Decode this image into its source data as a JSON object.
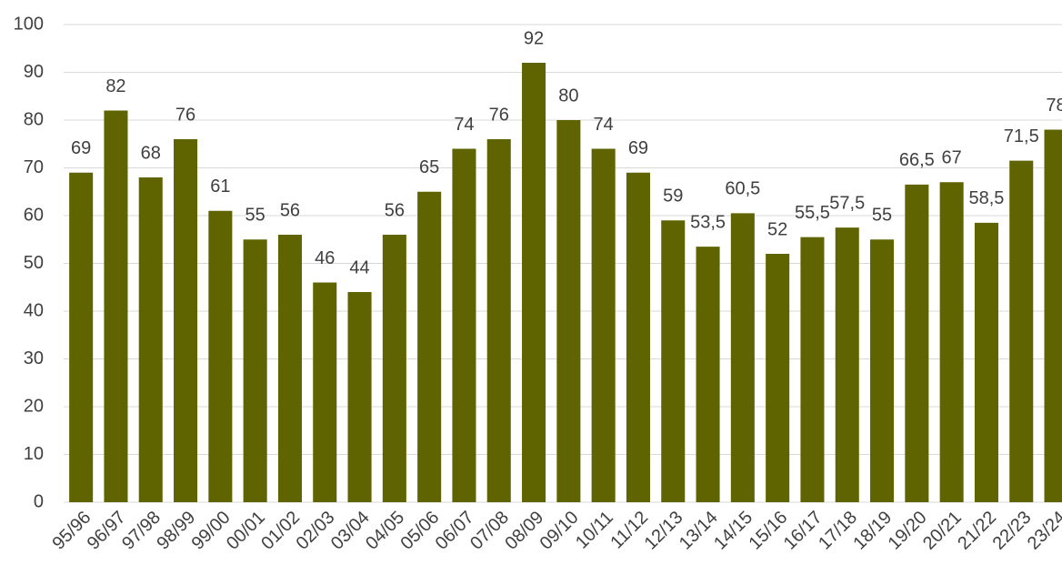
{
  "chart_data": {
    "type": "bar",
    "categories": [
      "95/96",
      "96/97",
      "97/98",
      "98/99",
      "99/00",
      "00/01",
      "01/02",
      "02/03",
      "03/04",
      "04/05",
      "05/06",
      "06/07",
      "07/08",
      "08/09",
      "09/10",
      "10/11",
      "11/12",
      "12/13",
      "13/14",
      "14/15",
      "15/16",
      "16/17",
      "17/18",
      "18/19",
      "19/20",
      "20/21",
      "21/22",
      "22/23",
      "23/24"
    ],
    "values": [
      69,
      82,
      68,
      76,
      61,
      55,
      56,
      46,
      44,
      56,
      65,
      74,
      76,
      92,
      80,
      74,
      69,
      59,
      53.5,
      60.5,
      52,
      55.5,
      57.5,
      55,
      66.5,
      67,
      58.5,
      71.5,
      78
    ],
    "value_labels": [
      "69",
      "82",
      "68",
      "76",
      "61",
      "55",
      "56",
      "46",
      "44",
      "56",
      "65",
      "74",
      "76",
      "92",
      "80",
      "74",
      "69",
      "59",
      "53,5",
      "60,5",
      "52",
      "55,5",
      "57,5",
      "55",
      "66,5",
      "67",
      "58,5",
      "71,5",
      "78"
    ],
    "color": "#5f6400",
    "ylim": [
      0,
      100
    ],
    "yticks": [
      0,
      10,
      20,
      30,
      40,
      50,
      60,
      70,
      80,
      90,
      100
    ],
    "grid": true
  }
}
